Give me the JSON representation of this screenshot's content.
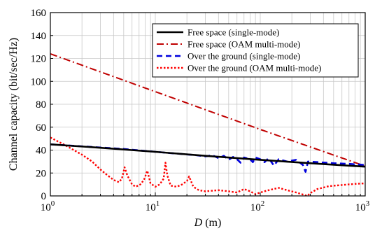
{
  "chart_data": {
    "type": "line",
    "title": "",
    "xlabel_italic": "D",
    "xlabel_rest": " (m)",
    "ylabel": "Channel capacity (bit/sec/Hz)",
    "x_scale": "log",
    "xlim": [
      1,
      1000
    ],
    "ylim": [
      0,
      160
    ],
    "x_ticks": [
      {
        "value": 1,
        "base": "10",
        "exp": "0"
      },
      {
        "value": 10,
        "base": "10",
        "exp": "1"
      },
      {
        "value": 100,
        "base": "10",
        "exp": "2"
      },
      {
        "value": 1000,
        "base": "10",
        "exp": "3"
      }
    ],
    "y_ticks": [
      0,
      20,
      40,
      60,
      80,
      100,
      120,
      140,
      160
    ],
    "grid": true,
    "legend_position": "top-right",
    "series": [
      {
        "name": "Free space (single-mode)",
        "color": "#000000",
        "style": "solid",
        "points": [
          [
            1,
            45
          ],
          [
            3,
            42
          ],
          [
            10,
            38.5
          ],
          [
            30,
            35
          ],
          [
            100,
            31.5
          ],
          [
            300,
            28.5
          ],
          [
            1000,
            25.5
          ]
        ]
      },
      {
        "name": "Free space (OAM multi-mode)",
        "color": "#c00000",
        "style": "dashdot",
        "points": [
          [
            1,
            124
          ],
          [
            10,
            91
          ],
          [
            100,
            58
          ],
          [
            1000,
            26
          ]
        ]
      },
      {
        "name": "Over the ground (single-mode)",
        "color": "#0000dd",
        "style": "dashed",
        "points": [
          [
            1,
            45
          ],
          [
            5,
            41
          ],
          [
            10,
            38.5
          ],
          [
            25,
            35.5
          ],
          [
            30,
            34.5
          ],
          [
            35,
            35.5
          ],
          [
            40,
            33
          ],
          [
            45,
            35
          ],
          [
            50,
            31.5
          ],
          [
            55,
            34
          ],
          [
            60,
            32
          ],
          [
            65,
            29
          ],
          [
            70,
            33.5
          ],
          [
            80,
            32
          ],
          [
            85,
            29.5
          ],
          [
            90,
            33.5
          ],
          [
            100,
            32
          ],
          [
            110,
            29.5
          ],
          [
            120,
            33
          ],
          [
            135,
            26.5
          ],
          [
            150,
            32
          ],
          [
            180,
            30
          ],
          [
            220,
            31.5
          ],
          [
            255,
            27
          ],
          [
            270,
            21
          ],
          [
            285,
            30
          ],
          [
            350,
            29.5
          ],
          [
            500,
            28.5
          ],
          [
            700,
            28
          ],
          [
            1000,
            27
          ]
        ]
      },
      {
        "name": "Over the ground (OAM multi-mode)",
        "color": "#ff0000",
        "style": "dotted",
        "points": [
          [
            1,
            51
          ],
          [
            1.4,
            44
          ],
          [
            2,
            36
          ],
          [
            2.5,
            30
          ],
          [
            3,
            23
          ],
          [
            3.5,
            18
          ],
          [
            4,
            14
          ],
          [
            4.5,
            12
          ],
          [
            4.8,
            15
          ],
          [
            5.1,
            25
          ],
          [
            5.4,
            18
          ],
          [
            6,
            10
          ],
          [
            6.5,
            8
          ],
          [
            7.2,
            10
          ],
          [
            7.8,
            14
          ],
          [
            8.4,
            22
          ],
          [
            9,
            11
          ],
          [
            10,
            8
          ],
          [
            11,
            10
          ],
          [
            12,
            15
          ],
          [
            12.5,
            29
          ],
          [
            13,
            18
          ],
          [
            14,
            9
          ],
          [
            16,
            8
          ],
          [
            18,
            10
          ],
          [
            20,
            13
          ],
          [
            21,
            17
          ],
          [
            23,
            8
          ],
          [
            26,
            5
          ],
          [
            30,
            4
          ],
          [
            40,
            5
          ],
          [
            50,
            4
          ],
          [
            60,
            3
          ],
          [
            70,
            6
          ],
          [
            80,
            4
          ],
          [
            90,
            1.5
          ],
          [
            100,
            3
          ],
          [
            120,
            5
          ],
          [
            150,
            7
          ],
          [
            180,
            5
          ],
          [
            220,
            3
          ],
          [
            260,
            1
          ],
          [
            280,
            0
          ],
          [
            300,
            2.5
          ],
          [
            350,
            6
          ],
          [
            450,
            8.5
          ],
          [
            600,
            9.5
          ],
          [
            800,
            10.5
          ],
          [
            1000,
            11
          ]
        ]
      }
    ]
  }
}
